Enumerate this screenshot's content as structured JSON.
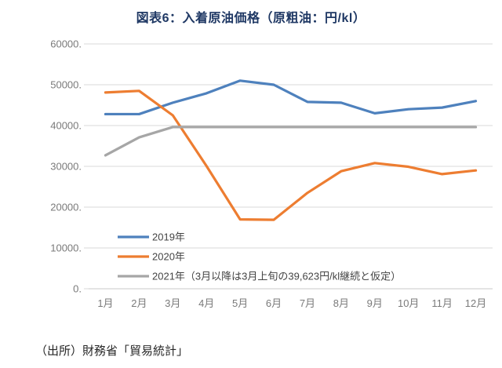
{
  "title": "図表6：入着原油価格（原粗油：円/kl）",
  "source_note": "（出所）財務省「貿易統計」",
  "colors": {
    "series_blue": "#4e81bd",
    "series_orange": "#ed7d31",
    "series_gray": "#a6a6a6",
    "gridline": "#d9d9d9",
    "axis_line": "#c9c9c9",
    "tick_label": "#7a7a7a",
    "legend_text": "#444444",
    "title_text": "#1f3864"
  },
  "chart_data": {
    "type": "line",
    "title": "図表6：入着原油価格（原粗油：円/kl）",
    "xlabel": "",
    "ylabel": "",
    "ylim": [
      0,
      60000
    ],
    "grid": true,
    "legend_position": "inside-lower-left",
    "categories": [
      "1月",
      "2月",
      "3月",
      "4月",
      "5月",
      "6月",
      "7月",
      "8月",
      "9月",
      "10月",
      "11月",
      "12月"
    ],
    "y_ticks": [
      {
        "label": "60000.",
        "value": 60000
      },
      {
        "label": "50000.",
        "value": 50000
      },
      {
        "label": "40000.",
        "value": 40000
      },
      {
        "label": "30000.",
        "value": 30000
      },
      {
        "label": "20000.",
        "value": 20000
      },
      {
        "label": "10000.",
        "value": 10000
      },
      {
        "label": "0.",
        "value": 0
      }
    ],
    "series": [
      {
        "name": "2019年",
        "color": "#4e81bd",
        "values": [
          42800,
          42800,
          45600,
          47900,
          51000,
          50000,
          45800,
          45600,
          43000,
          44000,
          44400,
          46000
        ]
      },
      {
        "name": "2020年",
        "color": "#ed7d31",
        "values": [
          48100,
          48500,
          42500,
          30100,
          17000,
          16900,
          23500,
          28800,
          30800,
          29900,
          28100,
          29000
        ]
      },
      {
        "name": "2021年（3月以降は3月上旬の39,623円/kl継続と仮定）",
        "color": "#a6a6a6",
        "values": [
          32700,
          37100,
          39623,
          39623,
          39623,
          39623,
          39623,
          39623,
          39623,
          39623,
          39623,
          39623
        ]
      }
    ]
  }
}
